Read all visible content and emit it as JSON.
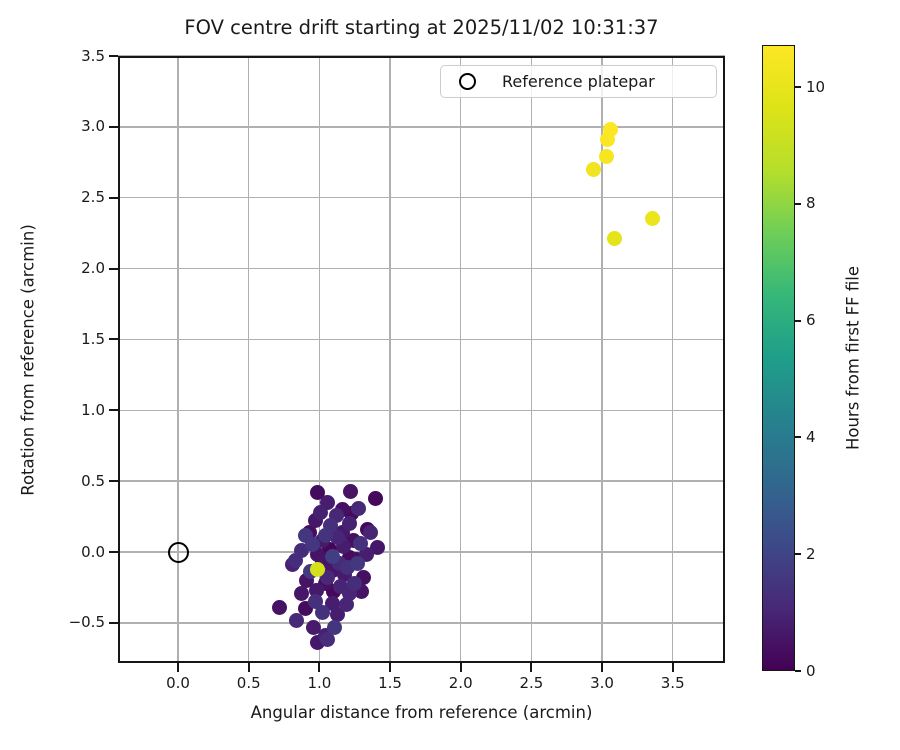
{
  "title": "FOV centre drift starting at 2025/11/02 10:31:37",
  "axes": {
    "xlabel": "Angular distance from reference (arcmin)",
    "ylabel": "Rotation from reference (arcmin)",
    "x_ticks": [
      {
        "value": 0.0,
        "label": "0.0"
      },
      {
        "value": 0.5,
        "label": "0.5"
      },
      {
        "value": 1.0,
        "label": "1.0"
      },
      {
        "value": 1.5,
        "label": "1.5"
      },
      {
        "value": 2.0,
        "label": "2.0"
      },
      {
        "value": 2.5,
        "label": "2.5"
      },
      {
        "value": 3.0,
        "label": "3.0"
      },
      {
        "value": 3.5,
        "label": "3.5"
      }
    ],
    "y_ticks": [
      {
        "value": -0.5,
        "label": "−0.5"
      },
      {
        "value": 0.0,
        "label": "0.0"
      },
      {
        "value": 0.5,
        "label": "0.5"
      },
      {
        "value": 1.0,
        "label": "1.0"
      },
      {
        "value": 1.5,
        "label": "1.5"
      },
      {
        "value": 2.0,
        "label": "2.0"
      },
      {
        "value": 2.5,
        "label": "2.5"
      },
      {
        "value": 3.0,
        "label": "3.0"
      },
      {
        "value": 3.5,
        "label": "3.5"
      }
    ]
  },
  "legend": {
    "label": "Reference platepar",
    "marker": "open-circle",
    "position": "upper right"
  },
  "colorbar": {
    "label": "Hours from first FF file",
    "ticks": [
      0,
      2,
      4,
      6,
      8,
      10
    ],
    "vmin": 0,
    "vmax": 10.72,
    "colormap": "viridis",
    "stops": [
      "#440154",
      "#482878",
      "#3e4989",
      "#31688e",
      "#26828e",
      "#1f9e89",
      "#35b779",
      "#6ece58",
      "#b5de2b",
      "#dde318",
      "#fde725"
    ]
  },
  "chart_data": {
    "type": "scatter",
    "title": "FOV centre drift starting at 2025/11/02 10:31:37",
    "xlabel": "Angular distance from reference (arcmin)",
    "ylabel": "Rotation from reference (arcmin)",
    "xlim": [
      -0.425,
      3.87
    ],
    "ylim": [
      -0.783,
      3.5
    ],
    "grid": true,
    "legend_position": "upper right",
    "color_value_label": "Hours from first FF file",
    "reference_point": {
      "x": 0.0,
      "y": 0.0,
      "label": "Reference platepar"
    },
    "points_format": [
      "x_arcmin",
      "y_arcmin",
      "hours"
    ],
    "points": [
      [
        0.99,
        0.42,
        0.3
      ],
      [
        1.22,
        0.43,
        0.5
      ],
      [
        1.4,
        0.38,
        0.2
      ],
      [
        1.06,
        0.35,
        0.8
      ],
      [
        1.16,
        0.3,
        0.4
      ],
      [
        1.28,
        0.31,
        1.1
      ],
      [
        0.97,
        0.22,
        0.6
      ],
      [
        1.08,
        0.19,
        1.3
      ],
      [
        1.21,
        0.2,
        0.9
      ],
      [
        1.34,
        0.16,
        0.2
      ],
      [
        1.01,
        0.28,
        0.85
      ],
      [
        1.12,
        0.26,
        1.05
      ],
      [
        1.23,
        0.27,
        0.25
      ],
      [
        0.9,
        0.12,
        1.5
      ],
      [
        1.02,
        0.08,
        0.7
      ],
      [
        1.13,
        0.1,
        1.0
      ],
      [
        1.24,
        0.08,
        0.4
      ],
      [
        1.41,
        0.03,
        0.6
      ],
      [
        0.93,
        0.14,
        0.35
      ],
      [
        1.04,
        0.12,
        1.45
      ],
      [
        1.16,
        0.14,
        0.65
      ],
      [
        1.36,
        0.14,
        0.95
      ],
      [
        0.87,
        0.01,
        1.2
      ],
      [
        0.95,
        0.05,
        1.55
      ],
      [
        1.07,
        0.02,
        0.15
      ],
      [
        1.17,
        0.04,
        0.75
      ],
      [
        1.29,
        0.06,
        1.35
      ],
      [
        0.99,
        -0.02,
        0.5
      ],
      [
        1.09,
        -0.03,
        1.8
      ],
      [
        1.21,
        -0.04,
        0.3
      ],
      [
        1.33,
        -0.02,
        0.8
      ],
      [
        0.83,
        -0.06,
        1.25
      ],
      [
        1.02,
        -0.07,
        0.55
      ],
      [
        1.14,
        -0.08,
        1.15
      ],
      [
        1.26,
        -0.05,
        0.35
      ],
      [
        0.81,
        -0.09,
        0.9
      ],
      [
        1.09,
        -0.13,
        0.6
      ],
      [
        1.2,
        -0.11,
        1.4
      ],
      [
        0.94,
        -0.14,
        1.65
      ],
      [
        0.91,
        -0.2,
        0.5
      ],
      [
        1.06,
        -0.18,
        1.1
      ],
      [
        1.18,
        -0.16,
        0.7
      ],
      [
        1.27,
        -0.08,
        1.6
      ],
      [
        1.31,
        -0.18,
        0.4
      ],
      [
        1.04,
        -0.22,
        0.45
      ],
      [
        1.15,
        -0.24,
        0.95
      ],
      [
        1.25,
        -0.22,
        1.25
      ],
      [
        0.87,
        -0.29,
        0.6
      ],
      [
        0.98,
        -0.27,
        0.65
      ],
      [
        1.1,
        -0.28,
        0.2
      ],
      [
        1.21,
        -0.29,
        1.0
      ],
      [
        1.3,
        -0.28,
        0.5
      ],
      [
        0.97,
        -0.35,
        1.3
      ],
      [
        1.09,
        -0.36,
        0.8
      ],
      [
        1.19,
        -0.37,
        1.0
      ],
      [
        0.72,
        -0.39,
        0.5
      ],
      [
        0.9,
        -0.4,
        0.3
      ],
      [
        1.02,
        -0.43,
        1.4
      ],
      [
        1.13,
        -0.44,
        0.8
      ],
      [
        0.84,
        -0.48,
        1.1
      ],
      [
        0.96,
        -0.53,
        0.7
      ],
      [
        1.11,
        -0.53,
        1.5
      ],
      [
        1.04,
        -0.59,
        0.9
      ],
      [
        0.99,
        -0.64,
        0.6
      ],
      [
        1.06,
        -0.62,
        1.2
      ],
      [
        0.99,
        -0.12,
        9.4
      ],
      [
        2.94,
        2.7,
        10.3
      ],
      [
        3.03,
        2.79,
        10.5
      ],
      [
        3.04,
        2.91,
        10.6
      ],
      [
        3.06,
        2.98,
        10.72
      ],
      [
        3.36,
        2.35,
        10.1
      ],
      [
        3.09,
        2.21,
        9.9
      ]
    ]
  }
}
